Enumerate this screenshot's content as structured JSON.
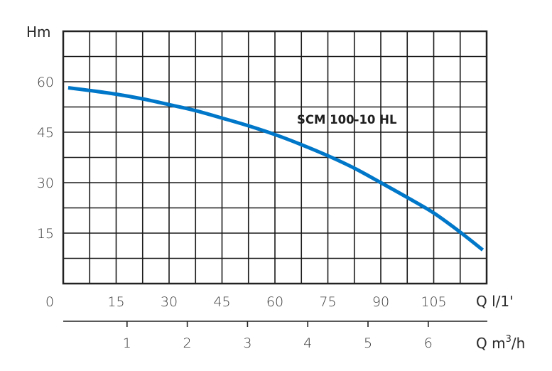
{
  "chart_data": {
    "type": "line",
    "title": "",
    "xlabel": "Q l/1'",
    "xlabel_secondary": "Q m³/h",
    "ylabel": "Hm",
    "xlim": [
      0,
      120
    ],
    "ylim": [
      0,
      75
    ],
    "grid": true,
    "legend_position": "inline annotation",
    "x_ticks": [
      0,
      15,
      30,
      45,
      60,
      75,
      90,
      105
    ],
    "x_tick_labels": [
      "0",
      "15",
      "30",
      "45",
      "60",
      "75",
      "90",
      "105"
    ],
    "x_secondary_ticks": [
      1,
      2,
      3,
      4,
      5,
      6
    ],
    "x_secondary_tick_labels": [
      "1",
      "2",
      "3",
      "4",
      "5",
      "6"
    ],
    "y_ticks": [
      15,
      30,
      45,
      60
    ],
    "y_tick_labels": [
      "15",
      "30",
      "45",
      "60"
    ],
    "grid_x_step": 7.5,
    "grid_y_step": 7.5,
    "series": [
      {
        "name": "SCM 100-10 HL",
        "color": "#0077c8",
        "x": [
          1.4,
          7.5,
          15,
          22.5,
          30,
          37.5,
          45,
          52.5,
          60,
          67.5,
          75,
          82.5,
          90,
          97.5,
          105,
          112.5,
          118.9
        ],
        "y": [
          58.2,
          57.4,
          56.3,
          54.9,
          53.2,
          51.4,
          49.2,
          46.9,
          44.3,
          41.3,
          38.0,
          34.3,
          30.0,
          25.6,
          21.0,
          15.3,
          10.0
        ]
      }
    ],
    "annotations": [
      {
        "text": "SCM 100-10 HL",
        "x": 75,
        "y": 59
      }
    ]
  },
  "labels": {
    "y_axis_title": "Hm",
    "x_axis_title": "Q l/1'",
    "x2_axis_title_q": "Q m",
    "x2_axis_title_sup": "3",
    "x2_axis_title_unit": "/h",
    "series_label": "SCM 100-10 HL"
  }
}
